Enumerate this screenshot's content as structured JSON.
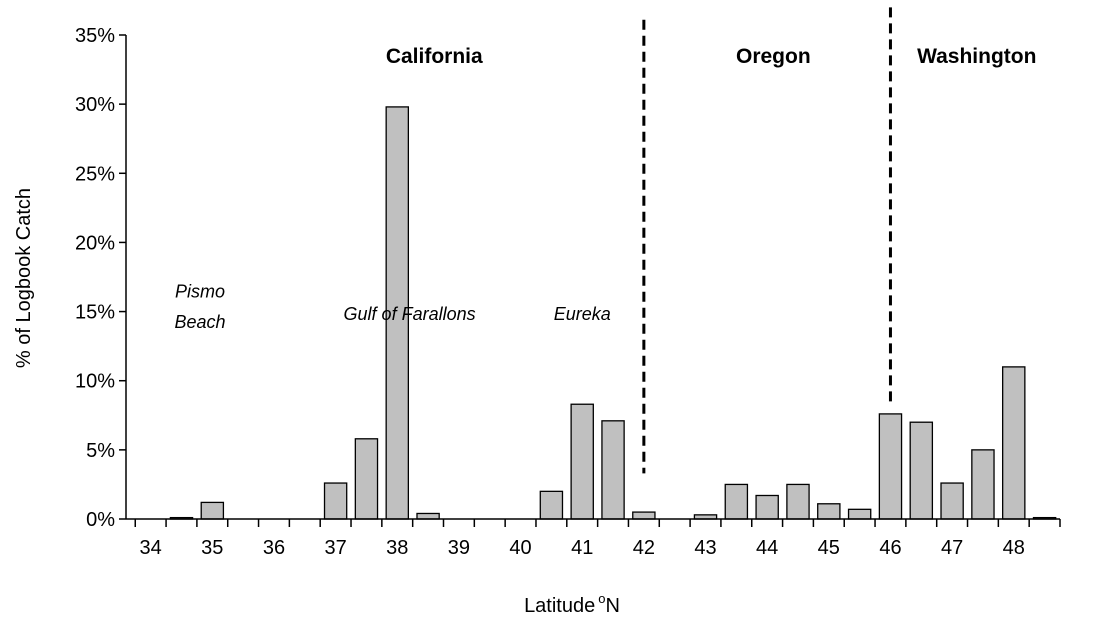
{
  "chart_data": {
    "type": "bar",
    "xlabel": "Latitude",
    "xlabel_superscript": "o",
    "xlabel_suffix": "N",
    "ylabel": "% of Logbook Catch",
    "ylim": [
      0,
      35
    ],
    "yticks": [
      "0%",
      "5%",
      "10%",
      "15%",
      "20%",
      "25%",
      "30%",
      "35%"
    ],
    "xticks": [
      "34",
      "35",
      "36",
      "37",
      "38",
      "39",
      "40",
      "41",
      "42",
      "43",
      "44",
      "45",
      "46",
      "47",
      "48"
    ],
    "xlim": [
      33.6,
      48.75
    ],
    "bar_width": 0.36,
    "x": [
      34.5,
      35.0,
      37.0,
      37.5,
      38.0,
      38.5,
      40.5,
      41.0,
      41.5,
      42.0,
      43.0,
      43.5,
      44.0,
      44.5,
      45.0,
      45.5,
      46.0,
      46.5,
      47.0,
      47.5,
      48.0,
      48.5
    ],
    "values": [
      0.1,
      1.2,
      2.6,
      5.8,
      29.8,
      0.4,
      2.0,
      8.3,
      7.1,
      0.5,
      0.3,
      2.5,
      1.7,
      2.5,
      1.1,
      0.7,
      7.6,
      7.0,
      2.6,
      5.0,
      11.0,
      0.1
    ],
    "grid": false,
    "dividers": [
      42.0,
      46.0
    ],
    "regions": [
      {
        "label": "California",
        "x": 38.6
      },
      {
        "label": "Oregon",
        "x": 44.1
      },
      {
        "label": "Washington",
        "x": 47.4
      }
    ],
    "annotations": [
      {
        "lines": [
          "Pismo",
          "Beach"
        ],
        "x": 34.8,
        "y": [
          16.0,
          13.8
        ]
      },
      {
        "lines": [
          "Gulf of Farallons"
        ],
        "x": 38.2,
        "y": [
          14.4
        ]
      },
      {
        "lines": [
          "Eureka"
        ],
        "x": 41.0,
        "y": [
          14.4
        ]
      }
    ]
  }
}
